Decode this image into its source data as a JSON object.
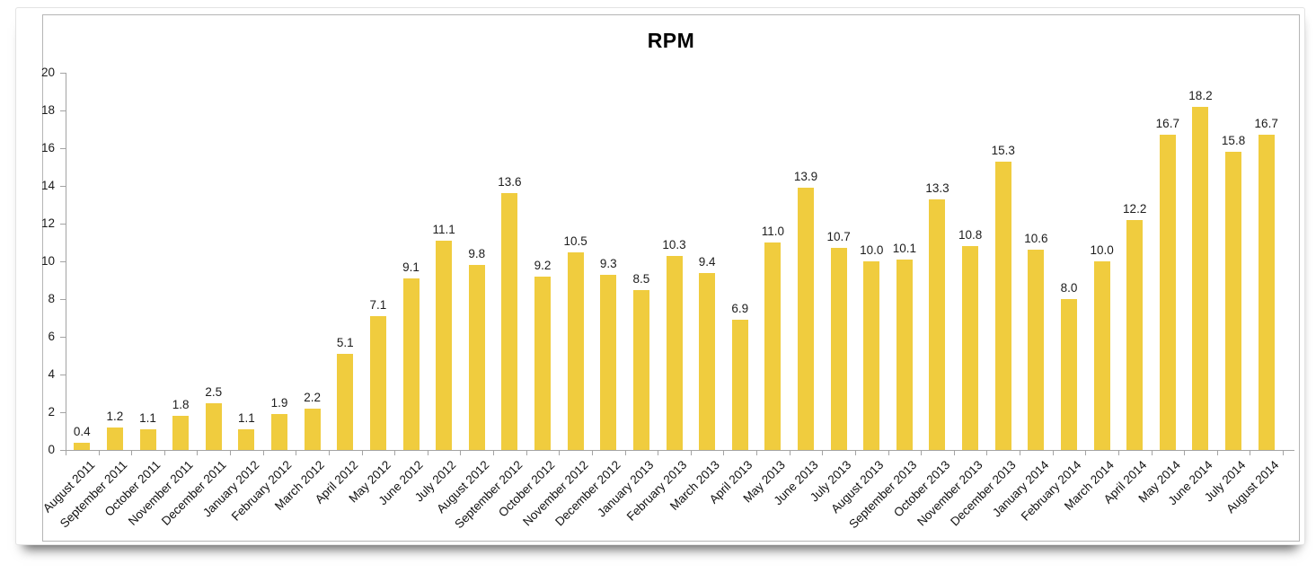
{
  "chart_data": {
    "type": "bar",
    "title": "RPM",
    "xlabel": "",
    "ylabel": "",
    "grid": "off",
    "legend": "none",
    "ylim": [
      0,
      20
    ],
    "yticks": [
      0,
      2,
      4,
      6,
      8,
      10,
      12,
      14,
      16,
      18,
      20
    ],
    "bar_color": "#f0cc3e",
    "axis_color": "#a3a3a3",
    "value_label_decimals": 1,
    "categories": [
      "August 2011",
      "September 2011",
      "October 2011",
      "November 2011",
      "December 2011",
      "January 2012",
      "February 2012",
      "March 2012",
      "April 2012",
      "May 2012",
      "June 2012",
      "July 2012",
      "August 2012",
      "September 2012",
      "October 2012",
      "November 2012",
      "December 2012",
      "January 2013",
      "February 2013",
      "March 2013",
      "April 2013",
      "May 2013",
      "June 2013",
      "July 2013",
      "August 2013",
      "September 2013",
      "October 2013",
      "November 2013",
      "December 2013",
      "January 2014",
      "February 2014",
      "March 2014",
      "April 2014",
      "May 2014",
      "June 2014",
      "July 2014",
      "August 2014"
    ],
    "values": [
      0.4,
      1.2,
      1.1,
      1.8,
      2.5,
      1.1,
      1.9,
      2.2,
      5.1,
      7.1,
      9.1,
      11.1,
      9.8,
      13.6,
      9.2,
      10.5,
      9.3,
      8.5,
      10.3,
      9.4,
      6.9,
      11.0,
      13.9,
      10.7,
      10.0,
      10.1,
      13.3,
      10.8,
      15.3,
      10.6,
      8.0,
      10.0,
      12.2,
      16.7,
      18.2,
      15.8,
      16.7
    ]
  }
}
